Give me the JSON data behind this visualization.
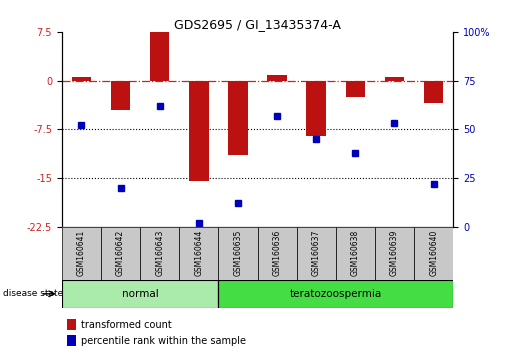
{
  "title": "GDS2695 / GI_13435374-A",
  "samples": [
    "GSM160641",
    "GSM160642",
    "GSM160643",
    "GSM160644",
    "GSM160635",
    "GSM160636",
    "GSM160637",
    "GSM160638",
    "GSM160639",
    "GSM160640"
  ],
  "transformed_count": [
    0.5,
    -4.5,
    7.5,
    -15.5,
    -11.5,
    0.8,
    -8.5,
    -2.5,
    0.5,
    -3.5
  ],
  "percentile_rank": [
    52,
    20,
    62,
    2,
    12,
    57,
    45,
    38,
    53,
    22
  ],
  "ylim_left": [
    -22.5,
    7.5
  ],
  "ylim_right": [
    0,
    100
  ],
  "yticks_left": [
    7.5,
    0,
    -7.5,
    -15,
    -22.5
  ],
  "yticks_right": [
    100,
    75,
    50,
    25,
    0
  ],
  "groups": [
    {
      "label": "normal",
      "start": 0,
      "end": 3,
      "color": "#aaeaaa"
    },
    {
      "label": "teratozoospermia",
      "start": 4,
      "end": 9,
      "color": "#44dd44"
    }
  ],
  "bar_color": "#bb1111",
  "dot_color": "#0000bb",
  "ref_line_color": "#cc2222",
  "dotted_line_color": "#000000",
  "sample_box_color": "#c8c8c8",
  "legend_bar_label": "transformed count",
  "legend_dot_label": "percentile rank within the sample",
  "disease_state_label": "disease state",
  "bar_width": 0.5,
  "hline_dotted": [
    -7.5,
    -15
  ]
}
